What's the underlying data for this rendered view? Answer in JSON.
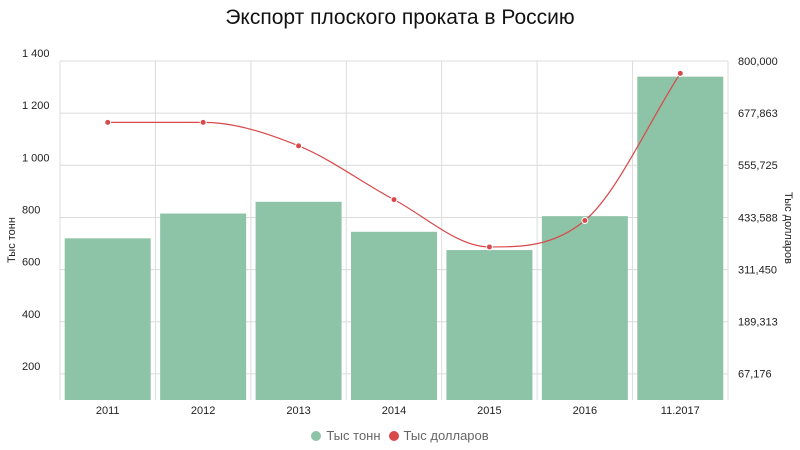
{
  "chart_data": {
    "type": "bar",
    "title": "Экспорт плоского проката в Россию",
    "categories": [
      "2011",
      "2012",
      "2013",
      "2014",
      "2015",
      "2016",
      "11.2017"
    ],
    "series": [
      {
        "name": "Тыс тонн",
        "type": "bar",
        "axis": "left",
        "color": "#8DC3A7",
        "values": [
          720,
          815,
          860,
          745,
          675,
          805,
          1340
        ]
      },
      {
        "name": "Тыс долларов",
        "type": "line",
        "axis": "right",
        "color": "#D9494B",
        "values": [
          656000,
          656000,
          601000,
          475000,
          364000,
          426000,
          771000
        ]
      }
    ],
    "ylabel_left": "Тыс тонн",
    "ylabel_right": "Тыс долларов",
    "ylim_left": [
      100,
      1400
    ],
    "yticks_left": [
      200,
      400,
      600,
      800,
      1000,
      1200,
      1400
    ],
    "ytick_labels_left": [
      "200",
      "400",
      "600",
      "800",
      "1 000",
      "1 200",
      "1 400"
    ],
    "ylim_right": [
      5107.5,
      800000
    ],
    "yticks_right": [
      67176,
      189313,
      311450,
      433588,
      555725,
      677863,
      800000
    ],
    "ytick_labels_right": [
      "67,176",
      "189,313",
      "311,450",
      "433,588",
      "555,725",
      "677,863",
      "800,000"
    ],
    "grid": true,
    "legend_position": "bottom-center"
  }
}
